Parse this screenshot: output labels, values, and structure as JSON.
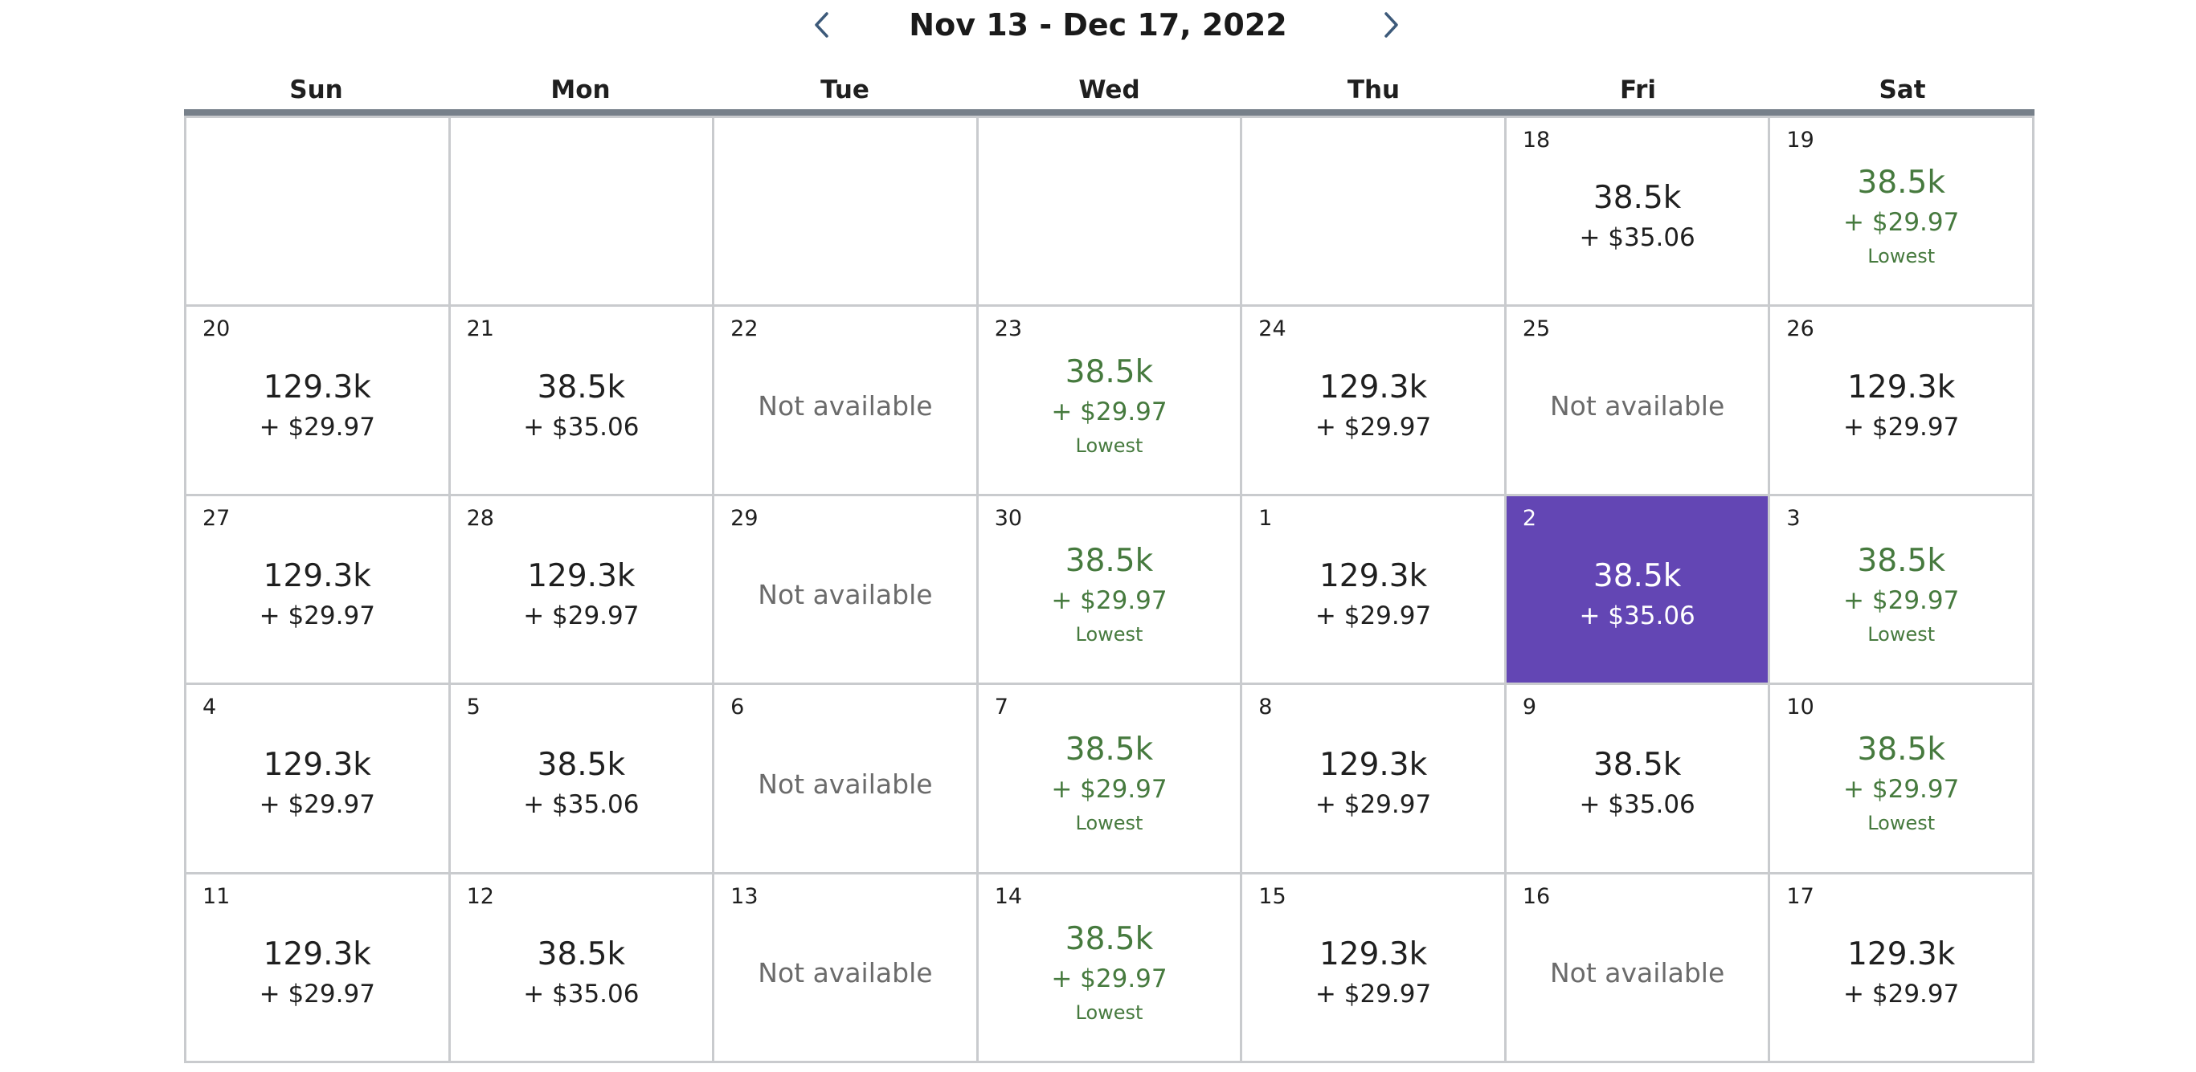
{
  "header": {
    "title": "Nov 13 - Dec 17, 2022",
    "prev_icon": "chevron-left-icon",
    "next_icon": "chevron-right-icon"
  },
  "weekdays": [
    "Sun",
    "Mon",
    "Tue",
    "Wed",
    "Thu",
    "Fri",
    "Sat"
  ],
  "labels": {
    "lowest": "Lowest",
    "not_available": "Not available"
  },
  "colors": {
    "lowest": "#467a3e",
    "selected_bg": "#6346b4",
    "header_rule": "#77808a"
  },
  "weeks": [
    [
      null,
      null,
      null,
      null,
      null,
      {
        "day": "18",
        "points": "38.5k",
        "fee": "+ $35.06",
        "status": "normal"
      },
      {
        "day": "19",
        "points": "38.5k",
        "fee": "+ $29.97",
        "status": "lowest"
      }
    ],
    [
      {
        "day": "20",
        "points": "129.3k",
        "fee": "+ $29.97",
        "status": "normal"
      },
      {
        "day": "21",
        "points": "38.5k",
        "fee": "+ $35.06",
        "status": "normal"
      },
      {
        "day": "22",
        "status": "unavailable"
      },
      {
        "day": "23",
        "points": "38.5k",
        "fee": "+ $29.97",
        "status": "lowest"
      },
      {
        "day": "24",
        "points": "129.3k",
        "fee": "+ $29.97",
        "status": "normal"
      },
      {
        "day": "25",
        "status": "unavailable"
      },
      {
        "day": "26",
        "points": "129.3k",
        "fee": "+ $29.97",
        "status": "normal"
      }
    ],
    [
      {
        "day": "27",
        "points": "129.3k",
        "fee": "+ $29.97",
        "status": "normal"
      },
      {
        "day": "28",
        "points": "129.3k",
        "fee": "+ $29.97",
        "status": "normal"
      },
      {
        "day": "29",
        "status": "unavailable"
      },
      {
        "day": "30",
        "points": "38.5k",
        "fee": "+ $29.97",
        "status": "lowest"
      },
      {
        "day": "1",
        "points": "129.3k",
        "fee": "+ $29.97",
        "status": "normal"
      },
      {
        "day": "2",
        "points": "38.5k",
        "fee": "+ $35.06",
        "status": "selected"
      },
      {
        "day": "3",
        "points": "38.5k",
        "fee": "+ $29.97",
        "status": "lowest"
      }
    ],
    [
      {
        "day": "4",
        "points": "129.3k",
        "fee": "+ $29.97",
        "status": "normal"
      },
      {
        "day": "5",
        "points": "38.5k",
        "fee": "+ $35.06",
        "status": "normal"
      },
      {
        "day": "6",
        "status": "unavailable"
      },
      {
        "day": "7",
        "points": "38.5k",
        "fee": "+ $29.97",
        "status": "lowest"
      },
      {
        "day": "8",
        "points": "129.3k",
        "fee": "+ $29.97",
        "status": "normal"
      },
      {
        "day": "9",
        "points": "38.5k",
        "fee": "+ $35.06",
        "status": "normal"
      },
      {
        "day": "10",
        "points": "38.5k",
        "fee": "+ $29.97",
        "status": "lowest"
      }
    ],
    [
      {
        "day": "11",
        "points": "129.3k",
        "fee": "+ $29.97",
        "status": "normal"
      },
      {
        "day": "12",
        "points": "38.5k",
        "fee": "+ $35.06",
        "status": "normal"
      },
      {
        "day": "13",
        "status": "unavailable"
      },
      {
        "day": "14",
        "points": "38.5k",
        "fee": "+ $29.97",
        "status": "lowest"
      },
      {
        "day": "15",
        "points": "129.3k",
        "fee": "+ $29.97",
        "status": "normal"
      },
      {
        "day": "16",
        "status": "unavailable"
      },
      {
        "day": "17",
        "points": "129.3k",
        "fee": "+ $29.97",
        "status": "normal"
      }
    ]
  ]
}
